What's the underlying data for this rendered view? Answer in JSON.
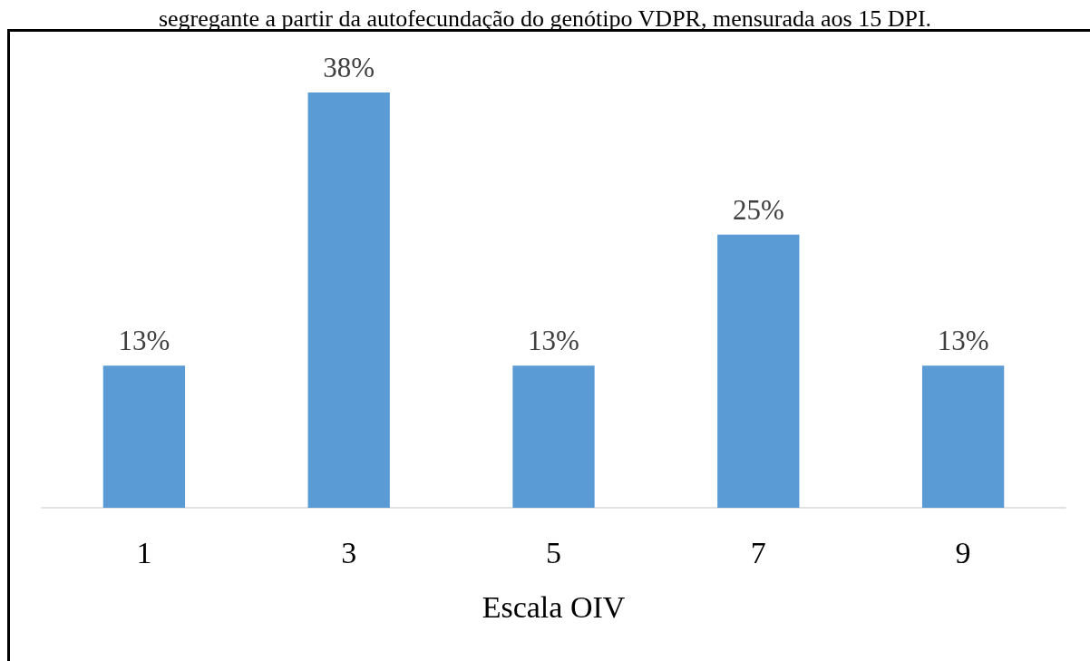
{
  "chart_data": {
    "type": "bar",
    "title": "segregante a partir da autofecundação do genótipo VDPR, mensurada aos 15 DPI.",
    "xlabel": "Escala OIV",
    "categories": [
      "1",
      "3",
      "5",
      "7",
      "9"
    ],
    "values": [
      13,
      38,
      13,
      25,
      13
    ],
    "value_labels": [
      "13%",
      "38%",
      "13%",
      "25%",
      "13%"
    ],
    "color": "#5b9bd5"
  }
}
